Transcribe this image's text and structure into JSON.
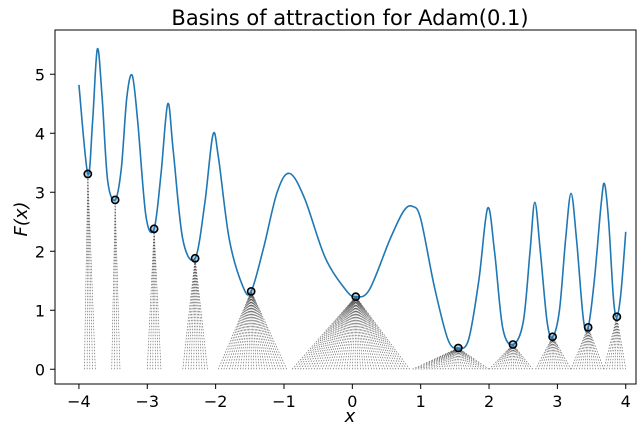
{
  "chart_data": {
    "type": "line",
    "title": "Basins of attraction for Adam(0.1)",
    "xlabel": "x",
    "ylabel": "F(x)",
    "xlim": [
      -4.35,
      4.15
    ],
    "ylim": [
      -0.25,
      5.75
    ],
    "xticks": [
      -4,
      -3,
      -2,
      -1,
      0,
      1,
      2,
      3,
      4
    ],
    "yticks": [
      0,
      1,
      2,
      3,
      4,
      5
    ],
    "grid": false,
    "colors": {
      "curve": "#1f77b4",
      "trajectories": "#555555",
      "minima_marker": "#000000"
    },
    "curve_points": [
      [
        -4.0,
        4.82
      ],
      [
        -3.87,
        3.31
      ],
      [
        -3.8,
        4.2
      ],
      [
        -3.73,
        5.43
      ],
      [
        -3.66,
        4.6
      ],
      [
        -3.58,
        3.2
      ],
      [
        -3.47,
        2.87
      ],
      [
        -3.38,
        3.4
      ],
      [
        -3.3,
        4.6
      ],
      [
        -3.22,
        4.98
      ],
      [
        -3.14,
        4.2
      ],
      [
        -3.02,
        2.6
      ],
      [
        -2.9,
        2.38
      ],
      [
        -2.8,
        3.3
      ],
      [
        -2.7,
        4.5
      ],
      [
        -2.62,
        3.7
      ],
      [
        -2.48,
        2.2
      ],
      [
        -2.3,
        1.88
      ],
      [
        -2.16,
        2.8
      ],
      [
        -2.04,
        3.97
      ],
      [
        -1.96,
        3.6
      ],
      [
        -1.8,
        2.2
      ],
      [
        -1.6,
        1.4
      ],
      [
        -1.48,
        1.32
      ],
      [
        -1.3,
        2.05
      ],
      [
        -1.1,
        3.0
      ],
      [
        -0.92,
        3.32
      ],
      [
        -0.7,
        2.9
      ],
      [
        -0.4,
        1.9
      ],
      [
        -0.1,
        1.35
      ],
      [
        0.05,
        1.23
      ],
      [
        0.25,
        1.35
      ],
      [
        0.55,
        2.2
      ],
      [
        0.75,
        2.68
      ],
      [
        0.88,
        2.76
      ],
      [
        1.0,
        2.55
      ],
      [
        1.2,
        1.4
      ],
      [
        1.4,
        0.5
      ],
      [
        1.55,
        0.36
      ],
      [
        1.7,
        0.5
      ],
      [
        1.85,
        1.5
      ],
      [
        1.98,
        2.73
      ],
      [
        2.08,
        2.0
      ],
      [
        2.2,
        0.7
      ],
      [
        2.35,
        0.42
      ],
      [
        2.5,
        0.8
      ],
      [
        2.6,
        2.0
      ],
      [
        2.67,
        2.83
      ],
      [
        2.75,
        2.0
      ],
      [
        2.85,
        0.8
      ],
      [
        2.93,
        0.55
      ],
      [
        3.03,
        1.0
      ],
      [
        3.12,
        2.2
      ],
      [
        3.2,
        2.98
      ],
      [
        3.28,
        2.2
      ],
      [
        3.38,
        0.85
      ],
      [
        3.45,
        0.71
      ],
      [
        3.54,
        1.5
      ],
      [
        3.64,
        2.8
      ],
      [
        3.69,
        3.14
      ],
      [
        3.75,
        2.5
      ],
      [
        3.82,
        1.2
      ],
      [
        3.87,
        0.89
      ],
      [
        3.93,
        1.3
      ],
      [
        4.0,
        2.33
      ]
    ],
    "minima": [
      {
        "x": -3.87,
        "y": 3.31,
        "basin": [
          -3.93,
          -3.76
        ]
      },
      {
        "x": -3.47,
        "y": 2.87,
        "basin": [
          -3.55,
          -3.38
        ]
      },
      {
        "x": -2.9,
        "y": 2.38,
        "basin": [
          -3.02,
          -2.8
        ]
      },
      {
        "x": -2.3,
        "y": 1.88,
        "basin": [
          -2.5,
          -2.12
        ]
      },
      {
        "x": -1.48,
        "y": 1.32,
        "basin": [
          -1.97,
          -0.95
        ]
      },
      {
        "x": 0.05,
        "y": 1.23,
        "basin": [
          -0.88,
          0.87
        ]
      },
      {
        "x": 1.55,
        "y": 0.36,
        "basin": [
          0.87,
          2.0
        ]
      },
      {
        "x": 2.35,
        "y": 0.42,
        "basin": [
          2.0,
          2.66
        ]
      },
      {
        "x": 2.93,
        "y": 0.55,
        "basin": [
          2.66,
          3.2
        ]
      },
      {
        "x": 3.45,
        "y": 0.71,
        "basin": [
          3.2,
          3.68
        ]
      },
      {
        "x": 3.87,
        "y": 0.89,
        "basin": [
          3.68,
          4.0
        ]
      }
    ],
    "trajectory_step": 0.04
  }
}
